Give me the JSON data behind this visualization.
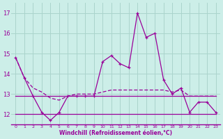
{
  "xlabel": "Windchill (Refroidissement éolien,°C)",
  "background_color": "#cceee8",
  "grid_color": "#aad4cc",
  "line_color": "#990099",
  "x_hours": [
    0,
    1,
    2,
    3,
    4,
    5,
    6,
    7,
    8,
    9,
    10,
    11,
    12,
    13,
    14,
    15,
    16,
    17,
    18,
    19,
    20,
    21,
    22,
    23
  ],
  "line1": [
    14.8,
    13.8,
    12.9,
    12.1,
    11.7,
    12.1,
    12.9,
    12.9,
    12.9,
    12.9,
    14.6,
    14.9,
    14.5,
    14.3,
    17.0,
    15.8,
    16.0,
    13.7,
    13.0,
    13.3,
    12.1,
    12.6,
    12.6,
    12.1
  ],
  "line2": [
    14.8,
    13.8,
    13.3,
    13.1,
    12.8,
    12.7,
    12.9,
    13.0,
    13.0,
    13.0,
    13.1,
    13.2,
    13.2,
    13.2,
    13.2,
    13.2,
    13.2,
    13.2,
    13.1,
    13.2,
    12.9,
    12.9,
    12.9,
    12.9
  ],
  "line3": [
    12.9,
    12.9,
    12.9,
    12.9,
    12.9,
    12.9,
    12.9,
    12.9,
    12.9,
    12.9,
    12.9,
    12.9,
    12.9,
    12.9,
    12.9,
    12.9,
    12.9,
    12.9,
    12.9,
    12.9,
    12.9,
    12.9,
    12.9,
    12.9
  ],
  "line4": [
    12.0,
    12.0,
    12.0,
    12.0,
    12.0,
    12.0,
    12.0,
    12.0,
    12.0,
    12.0,
    12.0,
    12.0,
    12.0,
    12.0,
    12.0,
    12.0,
    12.0,
    12.0,
    12.0,
    12.0,
    12.0,
    12.0,
    12.0,
    12.0
  ],
  "ylim": [
    11.5,
    17.5
  ],
  "yticks": [
    12,
    13,
    14,
    15,
    16,
    17
  ],
  "xtick_labels": [
    "0",
    "1",
    "2",
    "3",
    "4",
    "5",
    "6",
    "7",
    "8",
    "9",
    "10",
    "11",
    "12",
    "13",
    "14",
    "15",
    "16",
    "17",
    "18",
    "19",
    "20",
    "21",
    "22",
    "23"
  ]
}
